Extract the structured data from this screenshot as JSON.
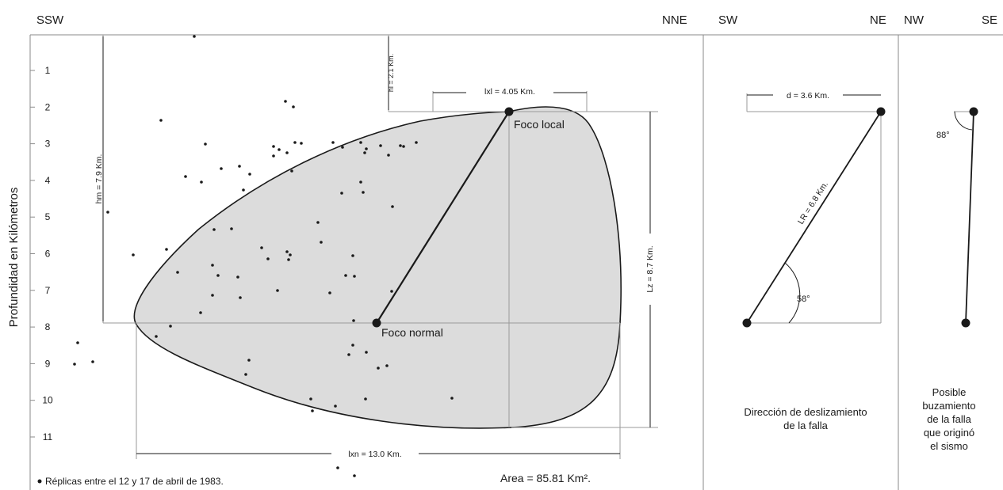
{
  "orientation": {
    "left_panel_left": "SSW",
    "left_panel_right": "NNE",
    "middle_panel_left": "SW",
    "middle_panel_right": "NE",
    "right_panel_left": "NW",
    "right_panel_right": "SE"
  },
  "y_axis": {
    "label": "Profundidad en Kilómetros",
    "ticks": [
      "1",
      "2",
      "3",
      "4",
      "5",
      "6",
      "7",
      "8",
      "9",
      "10",
      "11"
    ]
  },
  "foci": {
    "local": "Foco local",
    "normal": "Foco normal"
  },
  "dimensions": {
    "hm": "hm = 7.9 Km.",
    "hl": "hl = 2.1 Km.",
    "lxl": "lxl = 4.05 Km.",
    "lz": "Lz = 8.7 Km.",
    "lxn": "lxn = 13.0 Km.",
    "d": "d = 3.6 Km.",
    "lr": "LR = 6.8 Km.",
    "angle_slip": "58°",
    "angle_dip": "88°"
  },
  "area": "Area = 85.81 Km².",
  "legend": "Réplicas entre el 12 y 17 de abril de 1983.",
  "captions": {
    "slip_line1": "Dirección de deslizamiento",
    "slip_line2": "de la falla",
    "dip_line1": "Posible",
    "dip_line2": "buzamiento",
    "dip_line3": "de la falla",
    "dip_line4": "que originó",
    "dip_line5": "el sismo"
  },
  "colors": {
    "fill": "#dcdcdc",
    "ink": "#1a1a1a",
    "guide": "#9a9a9a"
  }
}
